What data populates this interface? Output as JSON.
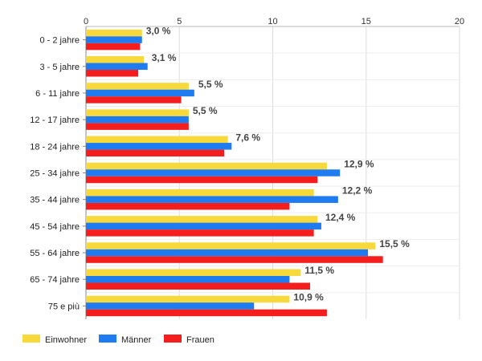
{
  "chart_data": {
    "type": "bar",
    "orientation": "horizontal",
    "title": "",
    "xlabel": "",
    "ylabel": "",
    "xlim": [
      0,
      20
    ],
    "x_ticks": [
      0,
      5,
      10,
      15,
      20
    ],
    "grid": true,
    "legend_position": "bottom-left",
    "categories": [
      "0 - 2 jahre",
      "3 - 5 jahre",
      "6 - 11 jahre",
      "12 - 17 jahre",
      "18 - 24 jahre",
      "25 - 34 jahre",
      "35 - 44 jahre",
      "45 - 54 jahre",
      "55 - 64 jahre",
      "65 - 74 jahre",
      "75 e più"
    ],
    "series": [
      {
        "name": "Einwohner",
        "color": "#f7d93b",
        "values": [
          3.0,
          3.1,
          5.5,
          5.5,
          7.6,
          12.9,
          12.2,
          12.4,
          15.5,
          11.5,
          10.9
        ]
      },
      {
        "name": "Männer",
        "color": "#1e7cf0",
        "values": [
          3.0,
          3.3,
          5.8,
          5.5,
          7.8,
          13.6,
          13.5,
          12.6,
          15.1,
          10.9,
          9.0
        ]
      },
      {
        "name": "Frauen",
        "color": "#f51e1e",
        "values": [
          2.9,
          2.8,
          5.1,
          5.5,
          7.4,
          12.4,
          10.9,
          12.2,
          15.9,
          12.0,
          12.9
        ]
      }
    ],
    "data_labels": [
      "3,0 %",
      "3,1 %",
      "5,5 %",
      "5,5 %",
      "7,6 %",
      "12,9 %",
      "12,2 %",
      "12,4 %",
      "15,5 %",
      "11,5 %",
      "10,9 %"
    ]
  }
}
